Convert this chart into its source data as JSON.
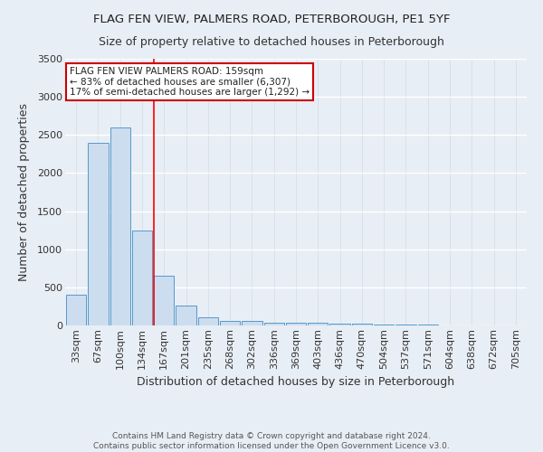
{
  "title": "FLAG FEN VIEW, PALMERS ROAD, PETERBOROUGH, PE1 5YF",
  "subtitle": "Size of property relative to detached houses in Peterborough",
  "xlabel": "Distribution of detached houses by size in Peterborough",
  "ylabel": "Number of detached properties",
  "categories": [
    "33sqm",
    "67sqm",
    "100sqm",
    "134sqm",
    "167sqm",
    "201sqm",
    "235sqm",
    "268sqm",
    "302sqm",
    "336sqm",
    "369sqm",
    "403sqm",
    "436sqm",
    "470sqm",
    "504sqm",
    "537sqm",
    "571sqm",
    "604sqm",
    "638sqm",
    "672sqm",
    "705sqm"
  ],
  "values": [
    400,
    2400,
    2600,
    1250,
    650,
    260,
    110,
    60,
    55,
    40,
    40,
    35,
    20,
    20,
    15,
    10,
    8,
    5,
    5,
    5,
    5
  ],
  "bar_color": "#ccddef",
  "bar_edge_color": "#5599cc",
  "background_color": "#e8eef5",
  "grid_color": "#d8e4f0",
  "red_line_x": 3.55,
  "annotation_text": "FLAG FEN VIEW PALMERS ROAD: 159sqm\n← 83% of detached houses are smaller (6,307)\n17% of semi-detached houses are larger (1,292) →",
  "annotation_box_color": "#ffffff",
  "annotation_border_color": "#cc0000",
  "footer": "Contains HM Land Registry data © Crown copyright and database right 2024.\nContains public sector information licensed under the Open Government Licence v3.0.",
  "ylim": [
    0,
    3500
  ],
  "yticks": [
    0,
    500,
    1000,
    1500,
    2000,
    2500,
    3000,
    3500
  ],
  "title_fontsize": 9.5,
  "subtitle_fontsize": 9,
  "xlabel_fontsize": 9,
  "ylabel_fontsize": 9,
  "tick_fontsize": 8
}
